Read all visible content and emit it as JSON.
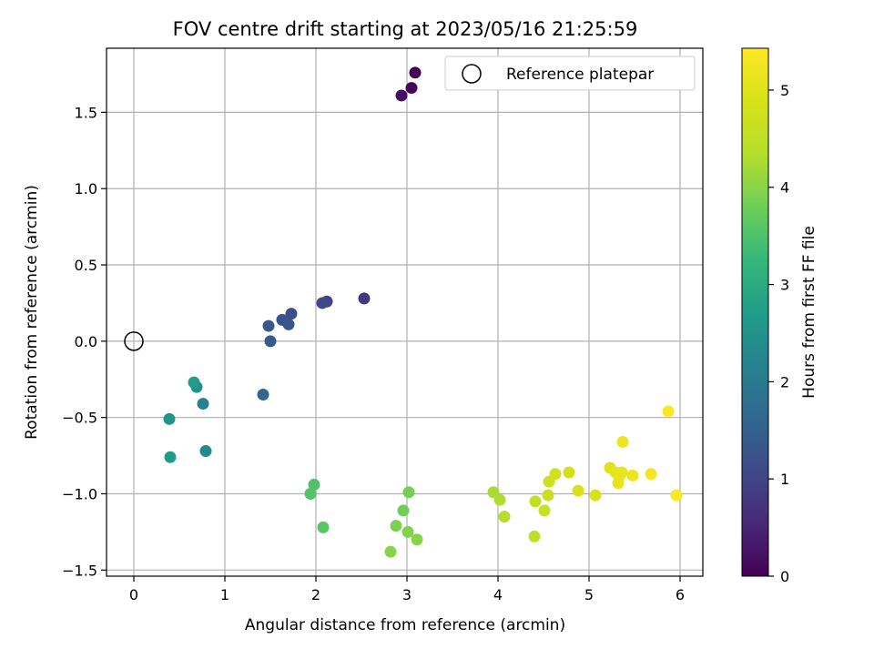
{
  "chart_data": {
    "type": "scatter",
    "title": "FOV centre drift starting at 2023/05/16 21:25:59",
    "xlabel": "Angular distance from reference (arcmin)",
    "ylabel": "Rotation from reference (arcmin)",
    "xlim": [
      -0.3,
      6.25
    ],
    "ylim": [
      -1.54,
      1.92
    ],
    "xticks": [
      0,
      1,
      2,
      3,
      4,
      5,
      6
    ],
    "xtick_labels": [
      "0",
      "1",
      "2",
      "3",
      "4",
      "5",
      "6"
    ],
    "yticks": [
      -1.5,
      -1.0,
      -0.5,
      0.0,
      0.5,
      1.0,
      1.5
    ],
    "ytick_labels": [
      "−1.5",
      "−1.0",
      "−0.5",
      "0.0",
      "0.5",
      "1.0",
      "1.5"
    ],
    "grid": true,
    "legend": {
      "position": "upper-right",
      "entries": [
        "Reference platepar"
      ]
    },
    "reference_point": {
      "x": 0,
      "y": 0,
      "label": "Reference platepar"
    },
    "colorbar": {
      "label": "Hours from first FF file",
      "colormap": "viridis",
      "range": [
        0,
        5.43
      ],
      "ticks": [
        0,
        1,
        2,
        3,
        4,
        5
      ],
      "tick_labels": [
        "0",
        "1",
        "2",
        "3",
        "4",
        "5"
      ]
    },
    "points": [
      {
        "x": 3.09,
        "y": 1.76,
        "hours": 0.0
      },
      {
        "x": 3.05,
        "y": 1.66,
        "hours": 0.1
      },
      {
        "x": 2.94,
        "y": 1.61,
        "hours": 0.2
      },
      {
        "x": 2.53,
        "y": 0.28,
        "hours": 0.8
      },
      {
        "x": 2.12,
        "y": 0.26,
        "hours": 1.0
      },
      {
        "x": 2.07,
        "y": 0.25,
        "hours": 1.05
      },
      {
        "x": 1.73,
        "y": 0.18,
        "hours": 1.15
      },
      {
        "x": 1.63,
        "y": 0.14,
        "hours": 1.25
      },
      {
        "x": 1.7,
        "y": 0.11,
        "hours": 1.3
      },
      {
        "x": 1.48,
        "y": 0.1,
        "hours": 1.35
      },
      {
        "x": 1.5,
        "y": 0.0,
        "hours": 1.4
      },
      {
        "x": 1.42,
        "y": -0.35,
        "hours": 1.6
      },
      {
        "x": 0.76,
        "y": -0.41,
        "hours": 2.2
      },
      {
        "x": 0.79,
        "y": -0.72,
        "hours": 2.3
      },
      {
        "x": 0.69,
        "y": -0.3,
        "hours": 2.45
      },
      {
        "x": 0.66,
        "y": -0.27,
        "hours": 2.7
      },
      {
        "x": 0.39,
        "y": -0.51,
        "hours": 2.55
      },
      {
        "x": 0.4,
        "y": -0.76,
        "hours": 2.65
      },
      {
        "x": 1.98,
        "y": -0.94,
        "hours": 3.5
      },
      {
        "x": 1.94,
        "y": -1.0,
        "hours": 3.55
      },
      {
        "x": 2.08,
        "y": -1.22,
        "hours": 3.6
      },
      {
        "x": 2.96,
        "y": -1.11,
        "hours": 3.8
      },
      {
        "x": 3.02,
        "y": -0.99,
        "hours": 3.85
      },
      {
        "x": 2.88,
        "y": -1.21,
        "hours": 3.9
      },
      {
        "x": 3.01,
        "y": -1.25,
        "hours": 3.95
      },
      {
        "x": 3.11,
        "y": -1.3,
        "hours": 4.0
      },
      {
        "x": 2.82,
        "y": -1.38,
        "hours": 4.0
      },
      {
        "x": 3.95,
        "y": -0.99,
        "hours": 4.25
      },
      {
        "x": 4.02,
        "y": -1.04,
        "hours": 4.3
      },
      {
        "x": 4.07,
        "y": -1.15,
        "hours": 4.35
      },
      {
        "x": 4.4,
        "y": -1.28,
        "hours": 4.45
      },
      {
        "x": 4.41,
        "y": -1.05,
        "hours": 4.55
      },
      {
        "x": 4.51,
        "y": -1.11,
        "hours": 4.6
      },
      {
        "x": 4.55,
        "y": -1.01,
        "hours": 4.65
      },
      {
        "x": 4.56,
        "y": -0.92,
        "hours": 4.7
      },
      {
        "x": 4.63,
        "y": -0.87,
        "hours": 4.75
      },
      {
        "x": 4.78,
        "y": -0.86,
        "hours": 4.8
      },
      {
        "x": 4.88,
        "y": -0.98,
        "hours": 4.85
      },
      {
        "x": 5.07,
        "y": -1.01,
        "hours": 4.9
      },
      {
        "x": 5.23,
        "y": -0.83,
        "hours": 5.0
      },
      {
        "x": 5.29,
        "y": -0.86,
        "hours": 5.05
      },
      {
        "x": 5.33,
        "y": -0.89,
        "hours": 5.1
      },
      {
        "x": 5.32,
        "y": -0.93,
        "hours": 5.1
      },
      {
        "x": 5.36,
        "y": -0.86,
        "hours": 5.15
      },
      {
        "x": 5.37,
        "y": -0.66,
        "hours": 5.2
      },
      {
        "x": 5.48,
        "y": -0.88,
        "hours": 5.2
      },
      {
        "x": 5.68,
        "y": -0.87,
        "hours": 5.3
      },
      {
        "x": 5.87,
        "y": -0.46,
        "hours": 5.38
      },
      {
        "x": 5.96,
        "y": -1.01,
        "hours": 5.43
      }
    ]
  }
}
